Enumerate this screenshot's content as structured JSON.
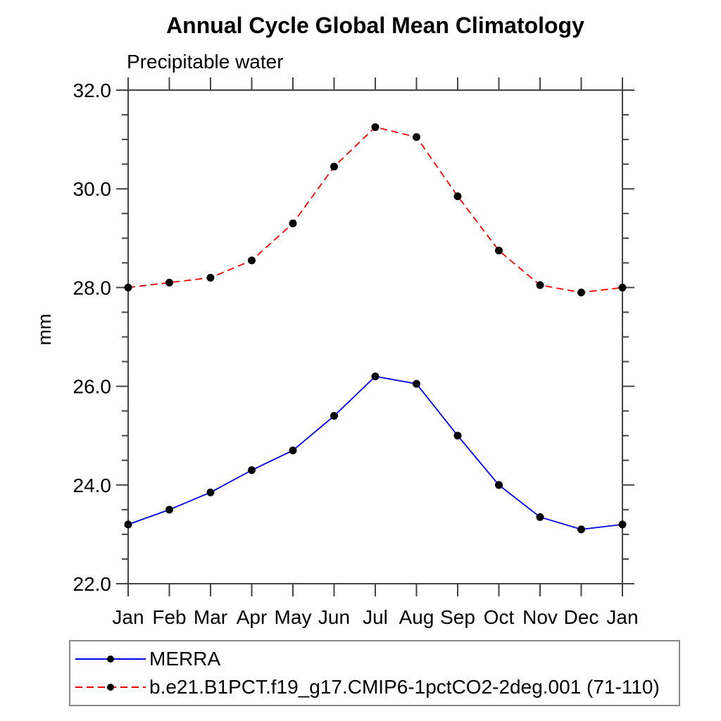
{
  "chart_data": {
    "type": "line",
    "title": "Annual Cycle Global Mean Climatology",
    "subtitle": "Precipitable water",
    "ylabel": "mm",
    "categories": [
      "Jan",
      "Feb",
      "Mar",
      "Apr",
      "May",
      "Jun",
      "Jul",
      "Aug",
      "Sep",
      "Oct",
      "Nov",
      "Dec",
      "Jan"
    ],
    "ylim": [
      22.0,
      32.0
    ],
    "ytick_major_values": [
      22.0,
      24.0,
      26.0,
      28.0,
      30.0,
      32.0
    ],
    "ytick_major_labels": [
      "22.0",
      "24.0",
      "26.0",
      "28.0",
      "30.0",
      "32.0"
    ],
    "ytick_minor_step": 0.5,
    "grid": false,
    "legend_position": "bottom-left",
    "axis_color": "#444444",
    "legend_border_color": "#888888",
    "marker_color": "#000000",
    "series": [
      {
        "name": "MERRA",
        "line_color": "#0000ee",
        "line_style": "solid",
        "marker": "filled-circle",
        "marker_color": "#000000",
        "values": [
          23.2,
          23.5,
          23.85,
          24.3,
          24.7,
          25.4,
          26.2,
          26.05,
          25.0,
          24.0,
          23.35,
          23.1,
          23.2
        ]
      },
      {
        "name": "b.e21.B1PCT.f19_g17.CMIP6-1pctCO2-2deg.001 (71-110)",
        "line_color": "#ff0000",
        "line_style": "dashed",
        "marker": "filled-circle",
        "marker_color": "#000000",
        "values": [
          28.0,
          28.1,
          28.2,
          28.55,
          29.3,
          30.45,
          31.25,
          31.05,
          29.85,
          28.75,
          28.05,
          27.9,
          28.0
        ]
      }
    ]
  }
}
